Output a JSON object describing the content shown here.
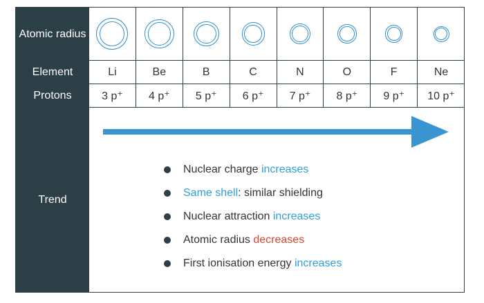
{
  "headers": {
    "atomic_radius": "Atomic radius",
    "element": "Element",
    "protons": "Protons",
    "trend": "Trend"
  },
  "elements": [
    {
      "symbol": "Li",
      "protons": "3 p⁺",
      "relative_radius": 1.0
    },
    {
      "symbol": "Be",
      "protons": "4 p⁺",
      "relative_radius": 0.93
    },
    {
      "symbol": "B",
      "protons": "5 p⁺",
      "relative_radius": 0.8
    },
    {
      "symbol": "C",
      "protons": "6 p⁺",
      "relative_radius": 0.72
    },
    {
      "symbol": "N",
      "protons": "7 p⁺",
      "relative_radius": 0.66
    },
    {
      "symbol": "O",
      "protons": "8 p⁺",
      "relative_radius": 0.6
    },
    {
      "symbol": "F",
      "protons": "9 p⁺",
      "relative_radius": 0.55
    },
    {
      "symbol": "Ne",
      "protons": "10 p⁺",
      "relative_radius": 0.5
    }
  ],
  "trend_arrow": {
    "direction": "right",
    "color": "#3a94d0"
  },
  "trend_items": [
    {
      "parts": [
        {
          "text": "Nuclear charge ",
          "style": "normal"
        },
        {
          "text": "increases",
          "style": "blue"
        }
      ]
    },
    {
      "parts": [
        {
          "text": "Same shell",
          "style": "blue"
        },
        {
          "text": ": similar shielding",
          "style": "normal"
        }
      ]
    },
    {
      "parts": [
        {
          "text": "Nuclear attraction ",
          "style": "normal"
        },
        {
          "text": "increases",
          "style": "blue"
        }
      ]
    },
    {
      "parts": [
        {
          "text": "Atomic radius ",
          "style": "normal"
        },
        {
          "text": "decreases",
          "style": "red"
        }
      ]
    },
    {
      "parts": [
        {
          "text": "First ionisation energy ",
          "style": "normal"
        },
        {
          "text": "increases",
          "style": "blue"
        }
      ]
    }
  ],
  "colors": {
    "header_bg": "#2c3e46",
    "atom_ring": "#2f8fcf",
    "highlight_blue": "#2f9fd8",
    "highlight_red": "#e0452e"
  }
}
